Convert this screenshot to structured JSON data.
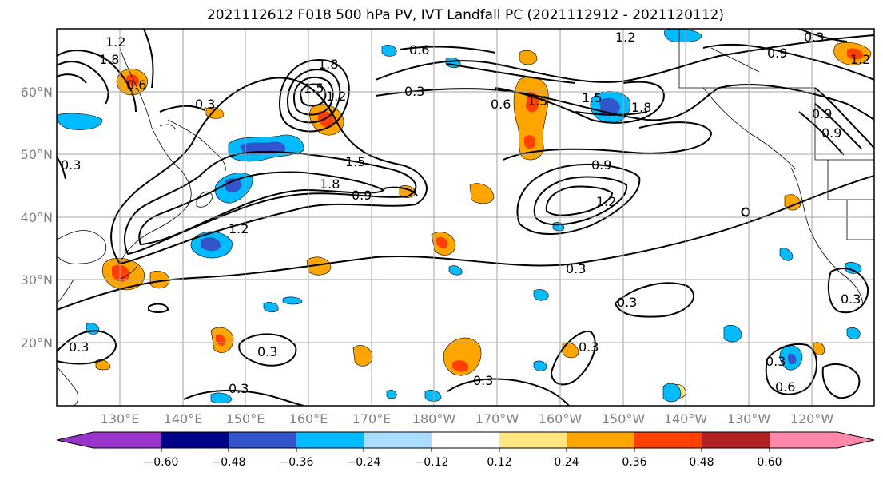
{
  "title": "2021112612 F018 500 hPa PV, IVT Landfall PC (2021112912 - 2021120112)",
  "map": {
    "lat_labels": [
      "60°N",
      "50°N",
      "40°N",
      "30°N",
      "20°N"
    ],
    "lon_labels": [
      "130°E",
      "140°E",
      "150°E",
      "160°E",
      "170°E",
      "180°W",
      "170°W",
      "160°W",
      "150°W",
      "140°W",
      "130°W",
      "120°W"
    ],
    "contour_labels": [
      "1.2",
      "1.8",
      "0.6",
      "0.3",
      "1.8",
      "1.5",
      "1.2",
      "0.6",
      "1.5",
      "1.8",
      "1.2",
      "0.9",
      "0.6",
      "1.2",
      "1.5",
      "0.9",
      "0.3",
      "0.3",
      "1.2",
      "1.8",
      "1.5",
      "0.9",
      "0.9",
      "1.2",
      "0.3",
      "0.3",
      "0.3",
      "0.3",
      "0.3",
      "0.3",
      "0.3",
      "0.3",
      "0.6",
      "0.3",
      "0.9",
      "0.3"
    ]
  },
  "colorbar": {
    "colors": [
      "#9933cc",
      "#000088",
      "#3355cc",
      "#00bbff",
      "#aaddff",
      "#ffffff",
      "#ffe680",
      "#ffa500",
      "#ff4000",
      "#b22222",
      "#ff88aa"
    ],
    "tick_labels": [
      "−0.60",
      "−0.48",
      "−0.36",
      "−0.24",
      "−0.12",
      "0.12",
      "0.24",
      "0.36",
      "0.48",
      "0.60"
    ]
  }
}
